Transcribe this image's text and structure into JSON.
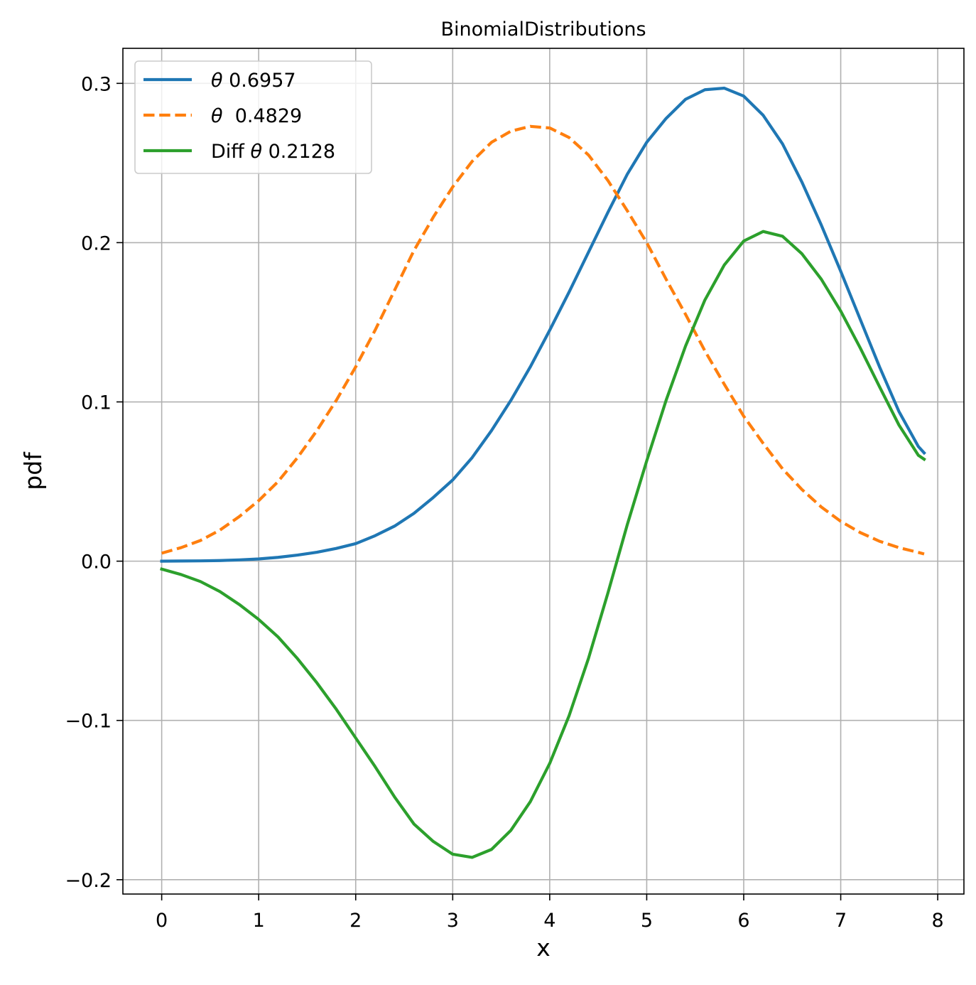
{
  "colors": {
    "blue": "#1f77b4",
    "orange": "#ff7f0e",
    "green": "#2ca02c",
    "grid": "#b0b0b0"
  },
  "chart_data": {
    "type": "line",
    "title": "BinomialDistributions",
    "xlabel": "x",
    "ylabel": "pdf",
    "xlim": [
      -0.4,
      8.27
    ],
    "ylim": [
      -0.209,
      0.322
    ],
    "xticks": [
      0,
      1,
      2,
      3,
      4,
      5,
      6,
      7,
      8
    ],
    "xtick_labels": [
      "0",
      "1",
      "2",
      "3",
      "4",
      "5",
      "6",
      "7",
      "8"
    ],
    "yticks": [
      -0.2,
      -0.1,
      0.0,
      0.1,
      0.2,
      0.3
    ],
    "ytick_labels": [
      "−0.2",
      "−0.1",
      "0.0",
      "0.1",
      "0.2",
      "0.3"
    ],
    "grid": true,
    "legend_position": "upper-left",
    "x": [
      0.0,
      0.2,
      0.4,
      0.6,
      0.8,
      1.0,
      1.2,
      1.4,
      1.6,
      1.8,
      2.0,
      2.2,
      2.4,
      2.6,
      2.8,
      3.0,
      3.2,
      3.4,
      3.6,
      3.8,
      4.0,
      4.2,
      4.4,
      4.6,
      4.8,
      5.0,
      5.2,
      5.4,
      5.6,
      5.8,
      6.0,
      6.2,
      6.4,
      6.6,
      6.8,
      7.0,
      7.2,
      7.4,
      7.6,
      7.8,
      7.86
    ],
    "series": [
      {
        "name": "θ 0.6957",
        "legend_prefix": "θ",
        "legend_suffix": " 0.6957",
        "color": "blue",
        "style": "solid",
        "values": [
          0.0,
          0.0001,
          0.0002,
          0.0004,
          0.0008,
          0.0014,
          0.0024,
          0.0038,
          0.0056,
          0.008,
          0.011,
          0.016,
          0.022,
          0.03,
          0.04,
          0.051,
          0.065,
          0.082,
          0.101,
          0.122,
          0.145,
          0.169,
          0.194,
          0.219,
          0.243,
          0.263,
          0.278,
          0.29,
          0.296,
          0.297,
          0.292,
          0.28,
          0.262,
          0.238,
          0.211,
          0.182,
          0.152,
          0.122,
          0.094,
          0.072,
          0.068
        ]
      },
      {
        "name": "θ  0.4829",
        "legend_prefix": "θ",
        "legend_suffix": "  0.4829",
        "color": "orange",
        "style": "dashed",
        "values": [
          0.005,
          0.0085,
          0.013,
          0.0195,
          0.028,
          0.038,
          0.05,
          0.065,
          0.082,
          0.101,
          0.122,
          0.145,
          0.17,
          0.195,
          0.216,
          0.235,
          0.251,
          0.263,
          0.27,
          0.273,
          0.272,
          0.266,
          0.255,
          0.239,
          0.22,
          0.2,
          0.177,
          0.155,
          0.132,
          0.111,
          0.091,
          0.074,
          0.058,
          0.045,
          0.034,
          0.025,
          0.018,
          0.0125,
          0.0085,
          0.0055,
          0.0045
        ]
      },
      {
        "name": "Diff θ 0.2128",
        "legend_prefix": "Diff θ",
        "legend_suffix": " 0.2128",
        "color": "green",
        "style": "solid",
        "values": [
          -0.005,
          -0.0084,
          -0.0128,
          -0.0191,
          -0.0272,
          -0.0366,
          -0.0476,
          -0.0612,
          -0.0764,
          -0.093,
          -0.111,
          -0.129,
          -0.148,
          -0.165,
          -0.176,
          -0.184,
          -0.186,
          -0.181,
          -0.169,
          -0.151,
          -0.127,
          -0.097,
          -0.061,
          -0.02,
          0.023,
          0.063,
          0.101,
          0.135,
          0.164,
          0.186,
          0.201,
          0.207,
          0.204,
          0.193,
          0.177,
          0.157,
          0.134,
          0.1095,
          0.0855,
          0.0665,
          0.064
        ]
      }
    ]
  }
}
